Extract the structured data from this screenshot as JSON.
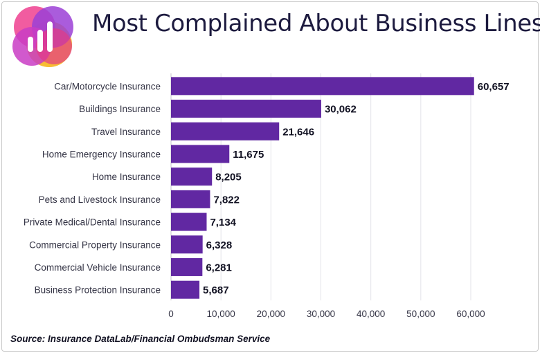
{
  "header": {
    "title": "Most Complained About Business Lines",
    "logo_icon": "bar-chart-logo-icon",
    "logo_colors": [
      "#f04e98",
      "#9b3fd6",
      "#f7b928",
      "#c93cc4",
      "#e23b86"
    ]
  },
  "colors": {
    "bar": "#6128a2",
    "grid": "#e3e3e8",
    "axis": "#c4c4cc"
  },
  "chart_data": {
    "type": "bar",
    "orientation": "horizontal",
    "title": "Most Complained About Business Lines",
    "categories": [
      "Car/Motorcycle Insurance",
      "Buildings Insurance",
      "Travel Insurance",
      "Home Emergency Insurance",
      "Home Insurance",
      "Pets and Livestock Insurance",
      "Private Medical/Dental Insurance",
      "Commercial Property Insurance",
      "Commercial Vehicle Insurance",
      "Business Protection Insurance"
    ],
    "values": [
      60657,
      30062,
      21646,
      11675,
      8205,
      7822,
      7134,
      6328,
      6281,
      5687
    ],
    "value_labels": [
      "60,657",
      "30,062",
      "21,646",
      "11,675",
      "8,205",
      "7,822",
      "7,134",
      "6,328",
      "6,281",
      "5,687"
    ],
    "xlim": [
      0,
      60000
    ],
    "xticks": [
      0,
      10000,
      20000,
      30000,
      40000,
      50000,
      60000
    ],
    "xtick_labels": [
      "0",
      "10,000",
      "20,000",
      "30,000",
      "40,000",
      "50,000",
      "60,000"
    ],
    "grid": true,
    "legend": "none"
  },
  "footer": {
    "source": "Source: Insurance DataLab/Financial Ombudsman Service"
  }
}
